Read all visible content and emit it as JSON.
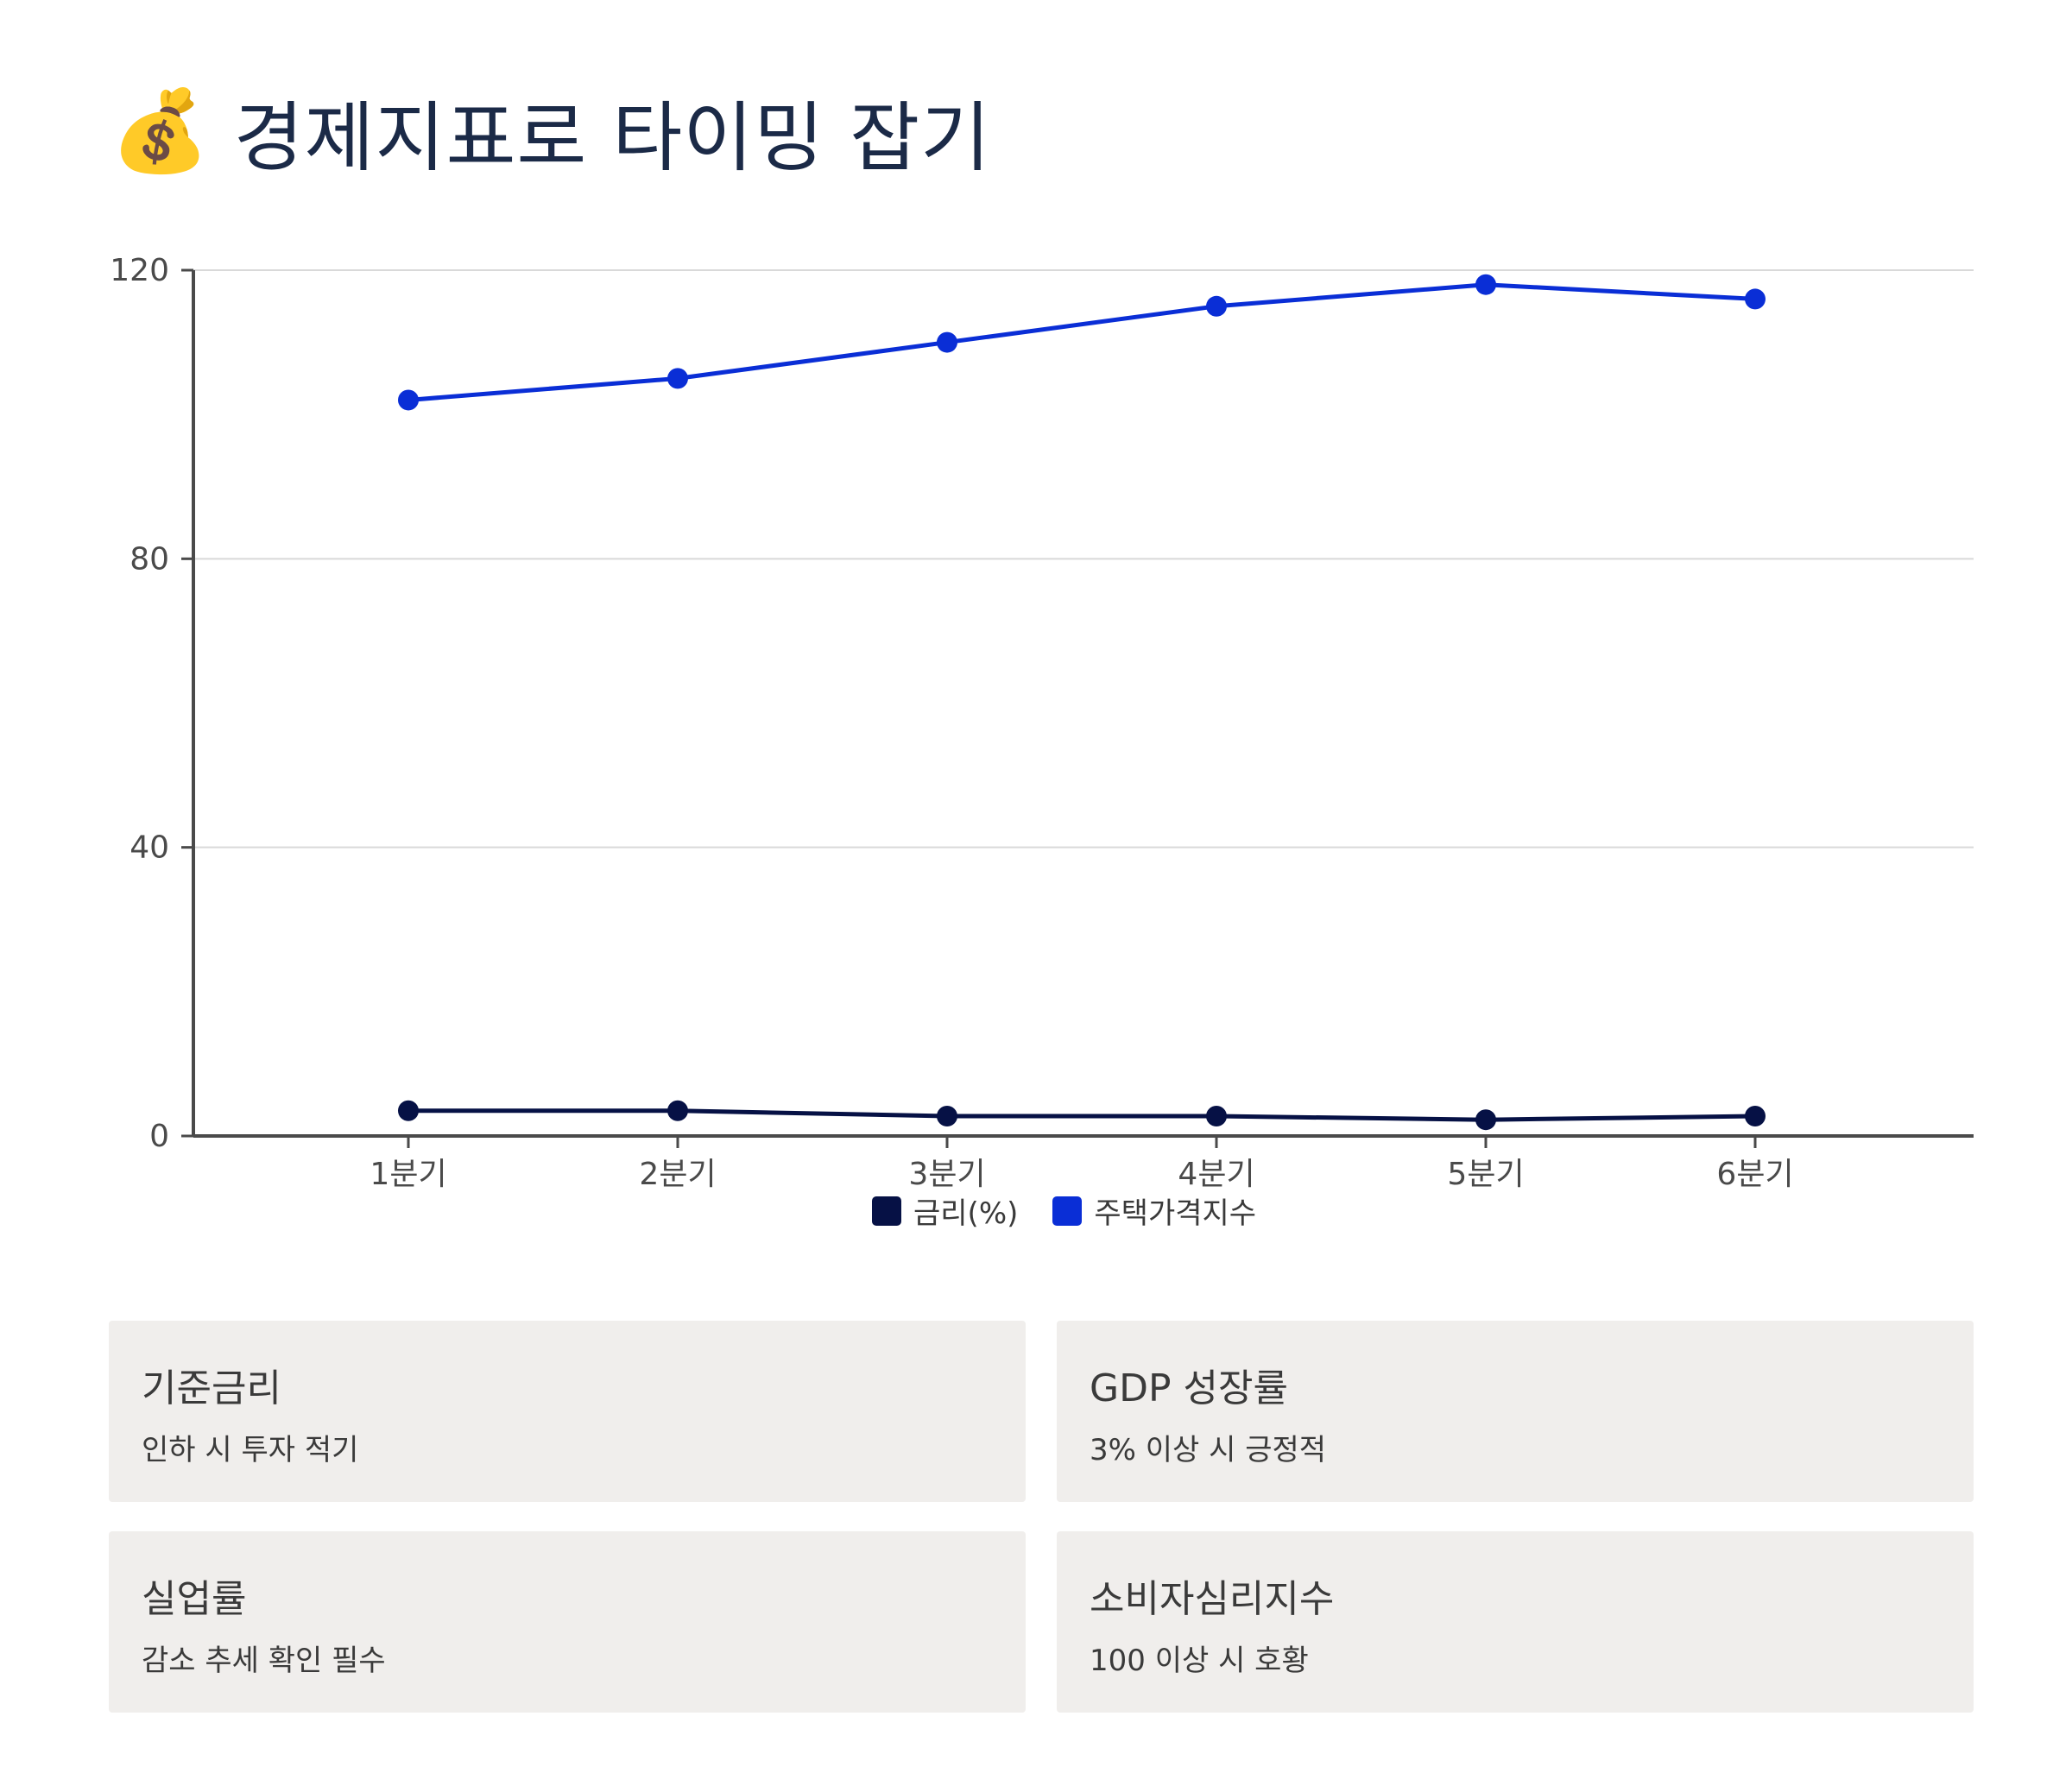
{
  "header": {
    "emoji": "💰",
    "title": "경제지표로 타이밍 잡기"
  },
  "colors": {
    "rate": "#061145",
    "price": "#0a2ed6",
    "grid": "#d9d9d9",
    "axis": "#4a4a4a"
  },
  "chart_data": {
    "type": "line",
    "categories": [
      "1분기",
      "2분기",
      "3분기",
      "4분기",
      "5분기",
      "6분기"
    ],
    "series": [
      {
        "name": "금리(%)",
        "values": [
          3.5,
          3.5,
          2.75,
          2.75,
          2.25,
          2.75
        ]
      },
      {
        "name": "주택가격지수",
        "values": [
          102,
          105,
          110,
          115,
          118,
          116
        ]
      }
    ],
    "yticks": [
      0,
      40,
      80,
      120
    ],
    "ylim": [
      0,
      120
    ],
    "grid": true,
    "legend_position": "bottom"
  },
  "cards": [
    {
      "title": "기준금리",
      "desc": "인하 시 투자 적기"
    },
    {
      "title": "GDP 성장률",
      "desc": "3% 이상 시 긍정적"
    },
    {
      "title": "실업률",
      "desc": "감소 추세 확인 필수"
    },
    {
      "title": "소비자심리지수",
      "desc": "100 이상 시 호황"
    }
  ]
}
